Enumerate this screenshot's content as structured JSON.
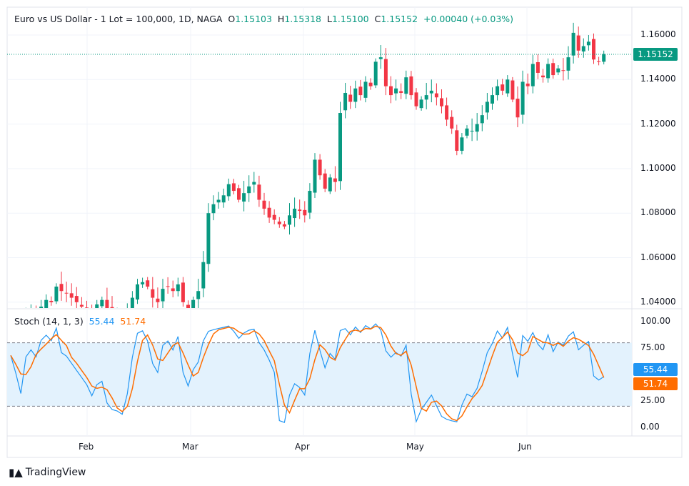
{
  "header": {
    "symbol": "Euro vs US Dollar - 1 Lot = 100,000, 1D, NAGA",
    "o_label": "O",
    "o": "1.15103",
    "h_label": "H",
    "h": "1.15318",
    "l_label": "L",
    "l": "1.15100",
    "c_label": "C",
    "c": "1.15152",
    "change": "+0.00040 (+0.03%)"
  },
  "price_axis": [
    "1.16000",
    "1.14000",
    "1.12000",
    "1.10000",
    "1.08000",
    "1.06000",
    "1.04000"
  ],
  "last_price": "1.15152",
  "stoch": {
    "title": "Stoch (14, 1, 3)",
    "k": "55.44",
    "d": "51.74",
    "axis": [
      "100.00",
      "75.00",
      "25.00",
      "0.00"
    ],
    "upper": 80,
    "lower": 20
  },
  "time_axis": [
    "Feb",
    "Mar",
    "Apr",
    "May",
    "Jun"
  ],
  "colors": {
    "up": "#089981",
    "down": "#f23645",
    "k": "#2196f3",
    "d": "#ff6d00",
    "band": "#e3f2fd"
  },
  "brand": "TradingView",
  "chart_data": {
    "type": "candlestick",
    "closes": [
      1.03,
      1.031,
      1.028,
      1.033,
      1.035,
      1.034,
      1.038,
      1.041,
      1.04,
      1.047,
      1.045,
      1.044,
      1.042,
      1.04,
      1.038,
      1.036,
      1.034,
      1.039,
      1.041,
      1.037,
      1.034,
      1.033,
      1.031,
      1.036,
      1.042,
      1.048,
      1.049,
      1.047,
      1.042,
      1.04,
      1.046,
      1.047,
      1.045,
      1.048,
      1.04,
      1.037,
      1.041,
      1.045,
      1.058,
      1.08,
      1.084,
      1.086,
      1.088,
      1.093,
      1.09,
      1.086,
      1.089,
      1.092,
      1.094,
      1.086,
      1.082,
      1.078,
      1.077,
      1.075,
      1.074,
      1.079,
      1.082,
      1.081,
      1.079,
      1.09,
      1.104,
      1.097,
      1.091,
      1.096,
      1.094,
      1.125,
      1.134,
      1.13,
      1.136,
      1.133,
      1.139,
      1.137,
      1.148,
      1.15,
      1.137,
      1.133,
      1.136,
      1.134,
      1.141,
      1.133,
      1.128,
      1.131,
      1.133,
      1.135,
      1.132,
      1.128,
      1.122,
      1.118,
      1.108,
      1.114,
      1.118,
      1.117,
      1.12,
      1.124,
      1.13,
      1.133,
      1.137,
      1.135,
      1.14,
      1.131,
      1.123,
      1.139,
      1.137,
      1.147,
      1.143,
      1.141,
      1.147,
      1.142,
      1.145,
      1.144,
      1.15,
      1.161,
      1.153,
      1.155,
      1.157,
      1.149,
      1.148,
      1.1515
    ],
    "ylim": [
      1.036,
      1.165
    ]
  }
}
